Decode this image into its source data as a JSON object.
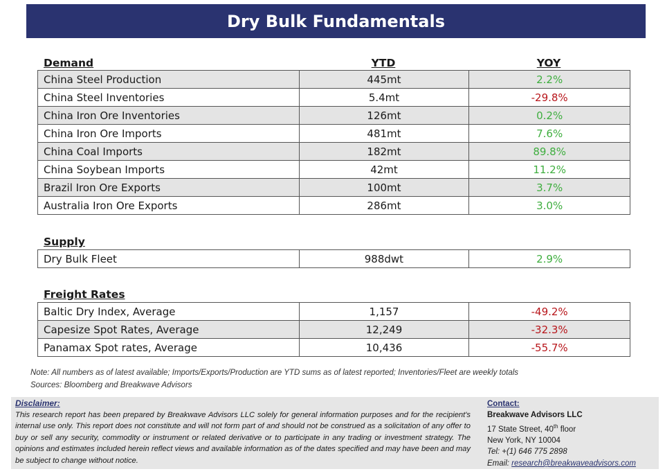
{
  "title": "Dry Bulk Fundamentals",
  "columns": {
    "ytd": "YTD",
    "yoy": "YOY"
  },
  "demand": {
    "heading": "Demand",
    "rows": [
      {
        "label": "China Steel Production",
        "ytd": "445mt",
        "yoy": "2.2%",
        "trend": "up"
      },
      {
        "label": "China Steel Inventories",
        "ytd": "5.4mt",
        "yoy": "-29.8%",
        "trend": "down"
      },
      {
        "label": "China Iron Ore Inventories",
        "ytd": "126mt",
        "yoy": "0.2%",
        "trend": "up"
      },
      {
        "label": "China Iron Ore Imports",
        "ytd": "481mt",
        "yoy": "7.6%",
        "trend": "up"
      },
      {
        "label": "China Coal Imports",
        "ytd": "182mt",
        "yoy": "89.8%",
        "trend": "up"
      },
      {
        "label": "China Soybean Imports",
        "ytd": "42mt",
        "yoy": "11.2%",
        "trend": "up"
      },
      {
        "label": "Brazil Iron Ore Exports",
        "ytd": "100mt",
        "yoy": "3.7%",
        "trend": "up"
      },
      {
        "label": "Australia Iron Ore Exports",
        "ytd": "286mt",
        "yoy": "3.0%",
        "trend": "up"
      }
    ]
  },
  "supply": {
    "heading": "Supply",
    "rows": [
      {
        "label": "Dry Bulk Fleet",
        "ytd": "988dwt",
        "yoy": "2.9%",
        "trend": "up"
      }
    ]
  },
  "freight": {
    "heading": "Freight Rates",
    "rows": [
      {
        "label": "Baltic Dry Index, Average",
        "ytd": "1,157",
        "yoy": "-49.2%",
        "trend": "down"
      },
      {
        "label": "Capesize Spot Rates, Average",
        "ytd": "12,249",
        "yoy": "-32.3%",
        "trend": "down"
      },
      {
        "label": "Panamax Spot rates, Average",
        "ytd": "10,436",
        "yoy": "-55.7%",
        "trend": "down"
      }
    ]
  },
  "notes": {
    "note": "Note:  All numbers as of latest available; Imports/Exports/Production are YTD sums as of latest reported; Inventories/Fleet are weekly totals",
    "sources": "Sources: Bloomberg and Breakwave Advisors"
  },
  "disclaimer": {
    "title": "Disclaimer:",
    "body": "This research report has been prepared by Breakwave Advisors LLC solely for general information purposes and for the recipient's internal use only. This report does not constitute and will not form part of and should not be construed as a solicitation of any offer to buy or sell any security, commodity or instrument or related derivative or to participate in any trading or investment strategy. The opinions and estimates included herein reflect views and available information as of the dates specified and may have been and may be subject to change without notice."
  },
  "contact": {
    "title": "Contact:",
    "company": "Breakwave Advisors LLC",
    "address_number": "17 State Street, 40",
    "address_sup": "th",
    "address_floor": " floor",
    "city": "New York, NY 10004",
    "tel": "Tel: +(1) 646 775 2898",
    "email_label": "Email: ",
    "email": "research@breakwaveadvisors.com"
  },
  "colors": {
    "banner": "#2a3370",
    "positive": "#3fae3f",
    "negative": "#b8161b",
    "row_shade": "#e4e4e4"
  }
}
